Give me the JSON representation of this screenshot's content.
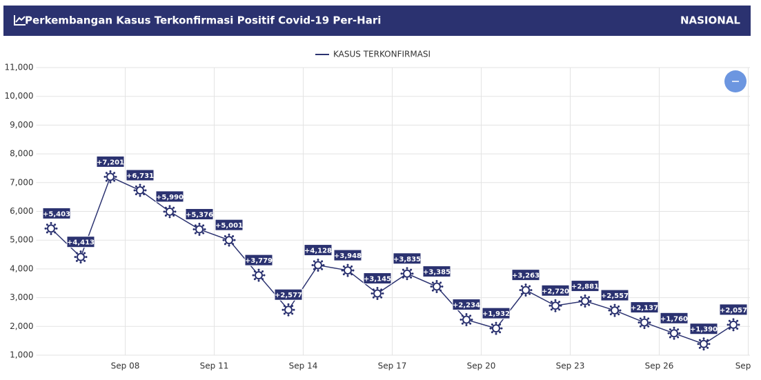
{
  "header": {
    "title": "Perkembangan Kasus Terkonfirmasi Positif Covid-19 Per-Hari",
    "region": "NASIONAL"
  },
  "chart_data": {
    "type": "line",
    "categories": [
      null,
      null,
      null,
      "Sep 08",
      null,
      null,
      "Sep 11",
      null,
      null,
      "Sep 14",
      null,
      null,
      "Sep 17",
      null,
      null,
      "Sep 20",
      null,
      null,
      "Sep 23",
      null,
      null,
      "Sep 26",
      null,
      null,
      "Sep"
    ],
    "series": [
      {
        "name": "KASUS TERKONFIRMASI",
        "color": "#2b3270",
        "values": [
          5403,
          4413,
          7201,
          6731,
          5990,
          5376,
          5001,
          3779,
          2577,
          4128,
          3948,
          3145,
          3835,
          3385,
          2234,
          1932,
          3263,
          2720,
          2881,
          2557,
          2137,
          1760,
          1390,
          2057,
          null
        ],
        "value_labels": [
          "+5,403",
          "+4,413",
          "+7,201",
          "+6,731",
          "+5,990",
          "+5,376",
          "+5,001",
          "+3,779",
          "+2,577",
          "+4,128",
          "+3,948",
          "+3,145",
          "+3,835",
          "+3,385",
          "+2,234",
          "+1,932",
          "+3,263",
          "+2,720",
          "+2,881",
          "+2,557",
          "+2,137",
          "+1,760",
          "+1,390",
          "+2,057",
          null
        ]
      }
    ],
    "ylim": [
      1000,
      11000
    ],
    "yticks": [
      {
        "value": 1000,
        "label": "1,000"
      },
      {
        "value": 2000,
        "label": "2,000"
      },
      {
        "value": 3000,
        "label": "3,000"
      },
      {
        "value": 4000,
        "label": "4,000"
      },
      {
        "value": 5000,
        "label": "5,000"
      },
      {
        "value": 6000,
        "label": "6,000"
      },
      {
        "value": 7000,
        "label": "7,000"
      },
      {
        "value": 8000,
        "label": "8,000"
      },
      {
        "value": 9000,
        "label": "9,000"
      },
      {
        "value": 10000,
        "label": "10,000"
      },
      {
        "value": 11000,
        "label": "11,000"
      }
    ],
    "grid": true,
    "legend": "top"
  }
}
